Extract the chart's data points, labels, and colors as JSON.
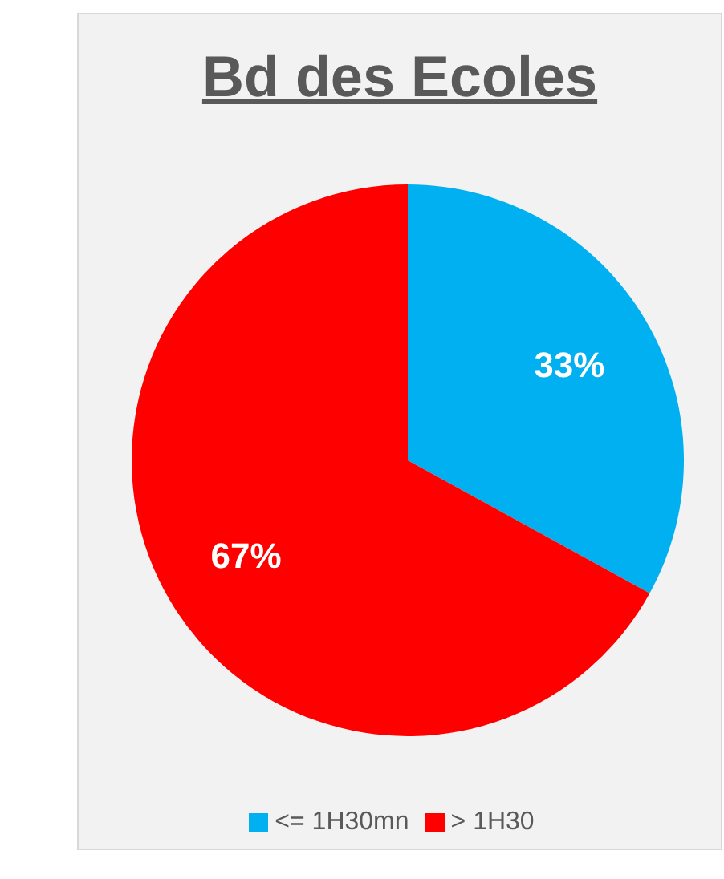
{
  "chart_data": {
    "type": "pie",
    "title": "Bd des Ecoles",
    "categories": [
      "<= 1H30mn",
      "> 1H30"
    ],
    "values": [
      33,
      67
    ],
    "colors": [
      "#00b0f0",
      "#ff0000"
    ],
    "value_labels": [
      "33%",
      "67%"
    ],
    "legend": "bottom"
  }
}
